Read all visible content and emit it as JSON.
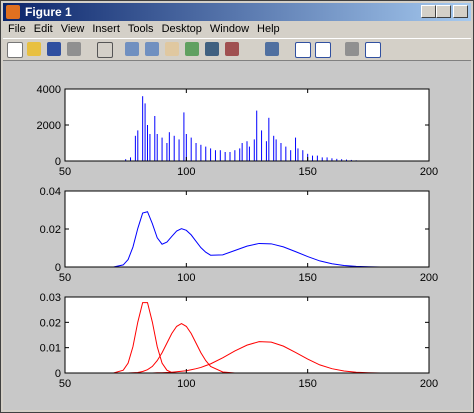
{
  "window": {
    "title": "Figure 1",
    "menu": [
      "File",
      "Edit",
      "View",
      "Insert",
      "Tools",
      "Desktop",
      "Window",
      "Help"
    ]
  },
  "chart_data": [
    {
      "type": "bar",
      "color": "#0000ff",
      "x": [
        75,
        77,
        79,
        80,
        82,
        83,
        84,
        85,
        87,
        88,
        90,
        92,
        93,
        95,
        97,
        99,
        100,
        102,
        104,
        106,
        108,
        110,
        112,
        114,
        116,
        118,
        120,
        122,
        123,
        125,
        126,
        128,
        129,
        131,
        133,
        134,
        136,
        137,
        139,
        141,
        143,
        145,
        146,
        148,
        150,
        152,
        154,
        156,
        158,
        160,
        162,
        164,
        166,
        168,
        170
      ],
      "values": [
        100,
        200,
        1400,
        1700,
        3600,
        3200,
        2000,
        1500,
        2500,
        1500,
        1300,
        1000,
        1600,
        1400,
        1200,
        2700,
        1500,
        1300,
        1000,
        900,
        800,
        700,
        600,
        600,
        500,
        500,
        600,
        700,
        1000,
        1100,
        800,
        1200,
        2800,
        1700,
        1100,
        2400,
        1400,
        1200,
        1000,
        800,
        600,
        1300,
        700,
        600,
        400,
        300,
        300,
        200,
        200,
        150,
        120,
        100,
        80,
        60,
        40
      ],
      "xlim": [
        50,
        200
      ],
      "xticks": [
        50,
        100,
        150,
        200
      ],
      "ylim": [
        0,
        4000
      ],
      "yticks": [
        0,
        2000,
        4000
      ]
    },
    {
      "type": "line",
      "x": [
        50,
        70,
        74,
        76,
        78,
        80,
        82,
        84,
        86,
        88,
        90,
        92,
        94,
        96,
        98,
        100,
        102,
        104,
        106,
        108,
        110,
        115,
        120,
        125,
        130,
        135,
        140,
        145,
        150,
        155,
        160,
        165,
        170,
        175,
        180,
        200
      ],
      "series": [
        {
          "color": "#0000ff",
          "values": [
            0,
            0,
            0.0011,
            0.0039,
            0.0105,
            0.0203,
            0.0284,
            0.0291,
            0.0228,
            0.0154,
            0.012,
            0.0131,
            0.0161,
            0.0189,
            0.0202,
            0.0193,
            0.0169,
            0.0135,
            0.0102,
            0.0078,
            0.0062,
            0.0064,
            0.0087,
            0.011,
            0.0124,
            0.0122,
            0.0106,
            0.0081,
            0.0055,
            0.0032,
            0.0017,
            0.0008,
            0.0003,
            0.0001,
            0,
            0
          ]
        }
      ],
      "xlim": [
        50,
        200
      ],
      "xticks": [
        50,
        100,
        150,
        200
      ],
      "ylim": [
        0,
        0.04
      ],
      "yticks": [
        0,
        0.02,
        0.04
      ]
    },
    {
      "type": "line",
      "x": [
        50,
        70,
        74,
        76,
        78,
        80,
        82,
        84,
        86,
        88,
        90,
        92,
        94,
        96,
        98,
        100,
        102,
        104,
        106,
        108,
        110,
        115,
        120,
        125,
        130,
        135,
        140,
        145,
        150,
        155,
        160,
        165,
        170,
        175,
        180,
        200
      ],
      "series": [
        {
          "color": "#ff0000",
          "values": [
            0,
            0,
            0.0011,
            0.0039,
            0.0104,
            0.0201,
            0.0278,
            0.0278,
            0.0201,
            0.0104,
            0.0039,
            0.0011,
            0.0002,
            0,
            0,
            0,
            0,
            0,
            0,
            0,
            0,
            0,
            0,
            0,
            0,
            0,
            0,
            0,
            0,
            0,
            0,
            0,
            0,
            0,
            0,
            0
          ]
        },
        {
          "color": "#ff0000",
          "values": [
            0,
            0,
            0,
            0,
            0.0001,
            0.0002,
            0.0006,
            0.0013,
            0.0026,
            0.0049,
            0.008,
            0.0118,
            0.0156,
            0.0184,
            0.0195,
            0.0184,
            0.0156,
            0.0118,
            0.008,
            0.0049,
            0.0026,
            0.0004,
            0,
            0,
            0,
            0,
            0,
            0,
            0,
            0,
            0,
            0,
            0,
            0,
            0,
            0
          ]
        },
        {
          "color": "#ff0000",
          "values": [
            0,
            0,
            0,
            0,
            0,
            0,
            0,
            0,
            0,
            0.0001,
            0.0001,
            0.0002,
            0.0003,
            0.0005,
            0.0007,
            0.0009,
            0.0013,
            0.0017,
            0.0022,
            0.0029,
            0.0036,
            0.006,
            0.0087,
            0.011,
            0.0124,
            0.0122,
            0.0106,
            0.0081,
            0.0055,
            0.0032,
            0.0017,
            0.0008,
            0.0003,
            0.0001,
            0,
            0
          ]
        },
        {
          "color": "#000000",
          "x": [
            57,
            108
          ],
          "values": [
            0,
            0
          ]
        }
      ],
      "xlim": [
        50,
        200
      ],
      "xticks": [
        50,
        100,
        150,
        200
      ],
      "ylim": [
        0,
        0.03
      ],
      "yticks": [
        0,
        0.01,
        0.02,
        0.03
      ]
    }
  ]
}
